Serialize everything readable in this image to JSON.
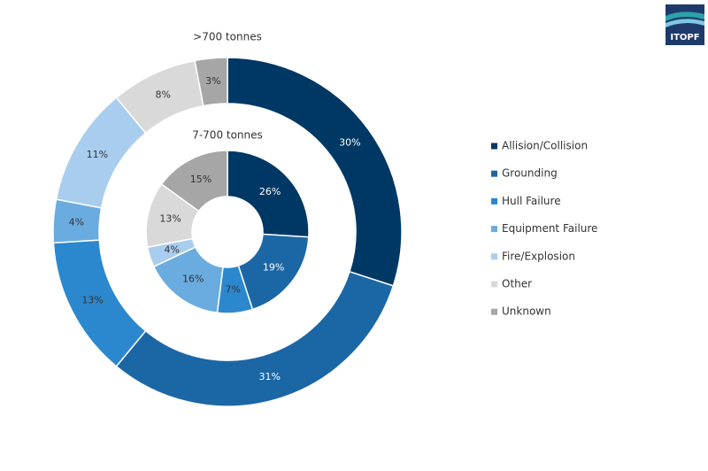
{
  "logo": {
    "text": "ITOPF"
  },
  "chart_data": {
    "type": "pie",
    "categories": [
      "Allision/Collision",
      "Grounding",
      "Hull Failure",
      "Equipment Failure",
      "Fire/Explosion",
      "Other",
      "Unknown"
    ],
    "colors": [
      "#003865",
      "#1b67a6",
      "#2b88cf",
      "#6aacdf",
      "#a9cdee",
      "#d9d9d9",
      "#a6a6a6"
    ],
    "series": [
      {
        "name": ">700 tonnes",
        "values": [
          30,
          31,
          13,
          4,
          11,
          8,
          3
        ],
        "value_labels": [
          "30%",
          "31%",
          "13%",
          "4%",
          "11%",
          "8%",
          "3%"
        ]
      },
      {
        "name": "7-700 tonnes",
        "values": [
          26,
          19,
          7,
          16,
          4,
          13,
          15
        ],
        "value_labels": [
          "26%",
          "19%",
          "7%",
          "16%",
          "4%",
          "13%",
          "15%"
        ]
      }
    ]
  }
}
